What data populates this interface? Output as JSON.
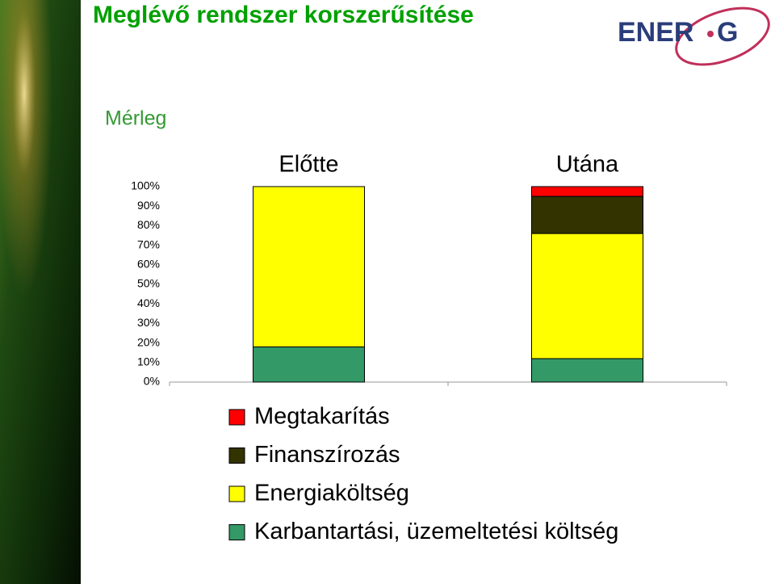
{
  "chart_data": {
    "type": "stacked-bar",
    "title": "Meglévő rendszer korszerűsítése",
    "subtitle": "Mérleg",
    "categories": [
      "Előtte",
      "Utána"
    ],
    "series": [
      {
        "name": "Karbantartási, üzemeltetési költség",
        "color": "#339966",
        "values": [
          18,
          12
        ]
      },
      {
        "name": "Energiaköltség",
        "color": "#ffff00",
        "values": [
          82,
          64
        ]
      },
      {
        "name": "Finanszírozás",
        "color": "#333300",
        "values": [
          0,
          19
        ]
      },
      {
        "name": "Megtakarítás",
        "color": "#ff0000",
        "values": [
          0,
          5
        ]
      }
    ],
    "ylim": [
      0,
      100
    ],
    "yticks": [
      {
        "value": 0,
        "label": "0%"
      },
      {
        "value": 10,
        "label": "10%"
      },
      {
        "value": 20,
        "label": "20%"
      },
      {
        "value": 30,
        "label": "30%"
      },
      {
        "value": 40,
        "label": "40%"
      },
      {
        "value": 50,
        "label": "50%"
      },
      {
        "value": 60,
        "label": "60%"
      },
      {
        "value": 70,
        "label": "70%"
      },
      {
        "value": 80,
        "label": "80%"
      },
      {
        "value": 90,
        "label": "90%"
      },
      {
        "value": 100,
        "label": "100%"
      }
    ]
  },
  "logo": {
    "left": "ENER",
    "right": "G"
  }
}
